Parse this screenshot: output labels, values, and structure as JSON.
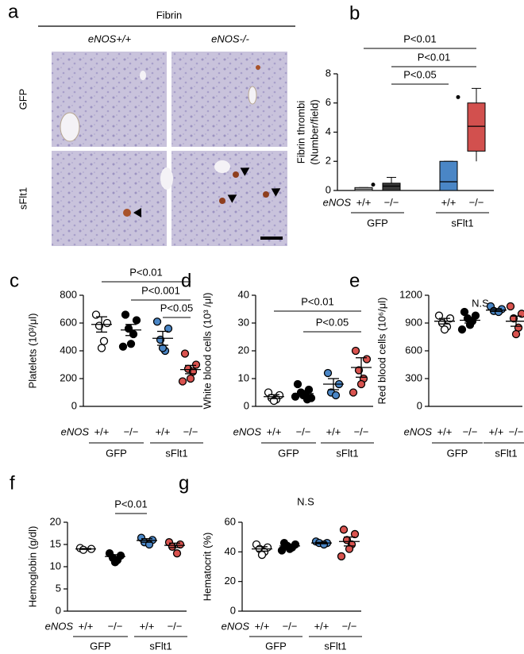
{
  "image_panel": {
    "label": "a",
    "title": "Fibrin",
    "columns": [
      "eNOS+/+",
      "eNOS-/-"
    ],
    "rows": [
      "GFP",
      "sFlt1"
    ]
  },
  "chart_data": [
    {
      "type": "box",
      "panel_label": "b",
      "y_label": [
        "Fibrin thrombi",
        "(Number/field)"
      ],
      "genotype_label": "eNOS",
      "categories": [
        "+/+",
        "−/−",
        "+/+",
        "−/−"
      ],
      "groups": [
        "GFP",
        "sFlt1"
      ],
      "ylim": [
        0,
        8
      ],
      "yticks": [
        0,
        2,
        4,
        6,
        8
      ],
      "series": [
        {
          "color": "#ffffff",
          "min": 0,
          "q1": 0,
          "median": 0.1,
          "q3": 0.2,
          "max": 0.2,
          "outliers": [
            0.4
          ]
        },
        {
          "color": "#3a3a3a",
          "min": 0,
          "q1": 0,
          "median": 0.3,
          "q3": 0.5,
          "max": 0.9,
          "outliers": []
        },
        {
          "color": "#4a86c6",
          "min": 0,
          "q1": 0,
          "median": 0.6,
          "q3": 2,
          "max": 2,
          "outliers": [
            6.4
          ]
        },
        {
          "color": "#d2504e",
          "min": 2,
          "q1": 2.7,
          "median": 4.4,
          "q3": 6,
          "max": 7,
          "outliers": []
        }
      ],
      "comparisons": [
        {
          "from": 0,
          "to": 3,
          "label": "P<0.01"
        },
        {
          "from": 1,
          "to": 3,
          "label": "P<0.01"
        },
        {
          "from": 1,
          "to": 2,
          "label": "P<0.05"
        }
      ]
    },
    {
      "type": "dot",
      "panel_label": "c",
      "y_label": "Platelets (10³/μl)",
      "genotype_label": "eNOS",
      "categories": [
        "+/+",
        "−/−",
        "+/+",
        "−/−"
      ],
      "groups": [
        "GFP",
        "sFlt1"
      ],
      "ylim": [
        0,
        800
      ],
      "yticks": [
        0,
        200,
        400,
        600,
        800
      ],
      "series": [
        {
          "color": "#ffffff",
          "points": [
            660,
            600,
            580,
            470,
            420
          ],
          "mean": 590,
          "sem": 55
        },
        {
          "color": "#000000",
          "points": [
            660,
            620,
            560,
            520,
            450,
            430
          ],
          "mean": 550,
          "sem": 40
        },
        {
          "color": "#4a86c6",
          "points": [
            610,
            560,
            480,
            400,
            420
          ],
          "mean": 490,
          "sem": 50
        },
        {
          "color": "#d9534f",
          "points": [
            380,
            300,
            270,
            250,
            200,
            180
          ],
          "mean": 265,
          "sem": 30
        }
      ],
      "comparisons": [
        {
          "from": 0,
          "to": 3,
          "label": "P<0.01"
        },
        {
          "from": 1,
          "to": 3,
          "label": "P<0.001"
        },
        {
          "from": 2,
          "to": 3,
          "label": "P<0.05"
        }
      ]
    },
    {
      "type": "dot",
      "panel_label": "d",
      "y_label": "White blood cells (10³ /μl)",
      "genotype_label": "eNOS",
      "categories": [
        "+/+",
        "−/−",
        "+/+",
        "−/−"
      ],
      "groups": [
        "GFP",
        "sFlt1"
      ],
      "ylim": [
        0,
        40
      ],
      "yticks": [
        0,
        10,
        20,
        30,
        40
      ],
      "series": [
        {
          "color": "#ffffff",
          "points": [
            5,
            4,
            3,
            2.5,
            2
          ],
          "mean": 3.5,
          "sem": 0.7
        },
        {
          "color": "#000000",
          "points": [
            8,
            6,
            5,
            4.5,
            4,
            3.5,
            3,
            2.5
          ],
          "mean": 4.6,
          "sem": 0.7
        },
        {
          "color": "#4a86c6",
          "points": [
            12,
            8,
            5,
            4
          ],
          "mean": 8,
          "sem": 2
        },
        {
          "color": "#d9534f",
          "points": [
            20,
            17,
            13,
            10,
            8,
            5
          ],
          "mean": 14,
          "sem": 3.5
        }
      ],
      "comparisons": [
        {
          "from": 0,
          "to": 3,
          "label": "P<0.01"
        },
        {
          "from": 1,
          "to": 3,
          "label": "P<0.05"
        }
      ]
    },
    {
      "type": "dot",
      "panel_label": "e",
      "y_label": "Red blood cells (10⁶/μl)",
      "genotype_label": "eNOS",
      "categories": [
        "+/+",
        "−/−",
        "+/+",
        "−/−"
      ],
      "groups": [
        "GFP",
        "sFlt1"
      ],
      "ylim": [
        0,
        1200
      ],
      "yticks": [
        0,
        300,
        600,
        900,
        1200
      ],
      "annotation": "N.S",
      "series": [
        {
          "color": "#ffffff",
          "points": [
            980,
            950,
            900,
            860,
            830
          ],
          "mean": 920,
          "sem": 30
        },
        {
          "color": "#000000",
          "points": [
            1020,
            980,
            950,
            920,
            880,
            830
          ],
          "mean": 930,
          "sem": 30
        },
        {
          "color": "#4a86c6",
          "points": [
            1080,
            1050,
            1030,
            1020
          ],
          "mean": 1040,
          "sem": 15
        },
        {
          "color": "#d9534f",
          "points": [
            1080,
            1000,
            950,
            850,
            780
          ],
          "mean": 920,
          "sem": 55
        }
      ],
      "comparisons": []
    },
    {
      "type": "dot",
      "panel_label": "f",
      "y_label": "Hemoglobin (g/dl)",
      "genotype_label": "eNOS",
      "categories": [
        "+/+",
        "−/−",
        "+/+",
        "−/−"
      ],
      "groups": [
        "GFP",
        "sFlt1"
      ],
      "ylim": [
        0,
        20
      ],
      "yticks": [
        0,
        5,
        10,
        15,
        20
      ],
      "series": [
        {
          "color": "#ffffff",
          "points": [
            14.2,
            14,
            13.8
          ],
          "mean": 14,
          "sem": 0.1
        },
        {
          "color": "#000000",
          "points": [
            13,
            12.5,
            12,
            11.5,
            11
          ],
          "mean": 12.3,
          "sem": 0.4
        },
        {
          "color": "#4a86c6",
          "points": [
            16.5,
            16,
            15.5,
            15
          ],
          "mean": 15.9,
          "sem": 0.4
        },
        {
          "color": "#d9534f",
          "points": [
            15.5,
            15,
            14.5,
            13
          ],
          "mean": 14.8,
          "sem": 0.5
        }
      ],
      "comparisons": [
        {
          "from": 1,
          "to": 2,
          "label": "P<0.01"
        }
      ]
    },
    {
      "type": "dot",
      "panel_label": "g",
      "y_label": "Hematocrit (%)",
      "genotype_label": "eNOS",
      "categories": [
        "+/+",
        "−/−",
        "+/+",
        "−/−"
      ],
      "groups": [
        "GFP",
        "sFlt1"
      ],
      "ylim": [
        0,
        60
      ],
      "yticks": [
        0,
        20,
        40,
        60
      ],
      "annotation": "N.S",
      "series": [
        {
          "color": "#ffffff",
          "points": [
            45,
            43,
            42,
            40,
            38
          ],
          "mean": 42,
          "sem": 1.5
        },
        {
          "color": "#000000",
          "points": [
            46,
            45,
            44,
            43,
            42,
            41
          ],
          "mean": 44,
          "sem": 1
        },
        {
          "color": "#4a86c6",
          "points": [
            47,
            46,
            46,
            45
          ],
          "mean": 46,
          "sem": 0.5
        },
        {
          "color": "#d9534f",
          "points": [
            55,
            52,
            48,
            45,
            42,
            37
          ],
          "mean": 47,
          "sem": 3
        }
      ],
      "comparisons": []
    }
  ]
}
